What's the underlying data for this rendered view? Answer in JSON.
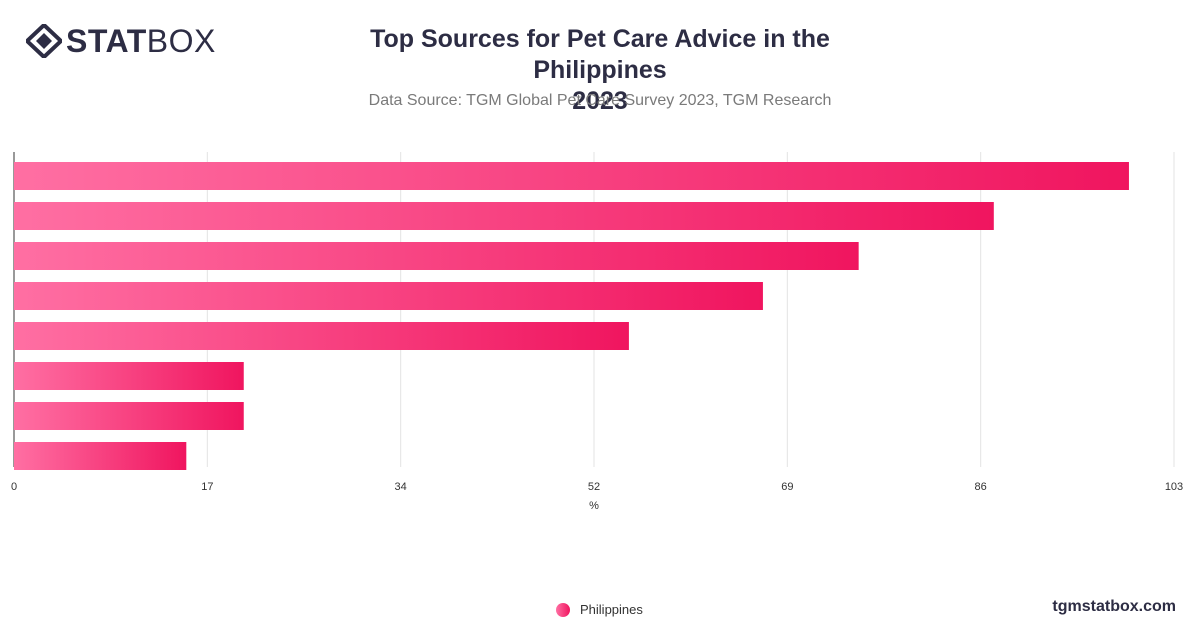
{
  "brand": {
    "logo_stat": "STAT",
    "logo_box": "BOX",
    "footer": "tgmstatbox.com"
  },
  "header": {
    "title_line1": "Top Sources for Pet Care Advice in the Philippines",
    "title_line2": "2023",
    "subtitle": "Data Source: TGM Global Pet Care Survey 2023, TGM Research"
  },
  "chart_data": {
    "type": "bar",
    "orientation": "horizontal",
    "categories": [
      "",
      "",
      "",
      "",
      "",
      "",
      "",
      ""
    ],
    "series": [
      {
        "name": "Philippines",
        "values": [
          99,
          87,
          75,
          66.5,
          54.6,
          20.4,
          20.4,
          15.3
        ]
      }
    ],
    "x_ticks": [
      "0",
      "17",
      "34",
      "52",
      "69",
      "86",
      "103"
    ],
    "xlabel": "%",
    "ylabel": "",
    "xlim": [
      0,
      103
    ],
    "grid": true,
    "legend_position": "bottom-center",
    "colors": {
      "bar_start": "#ff6fa3",
      "bar_end": "#f0155f",
      "grid": "#e3e3e3",
      "axis": "#333333",
      "tick_text": "#333333"
    }
  }
}
